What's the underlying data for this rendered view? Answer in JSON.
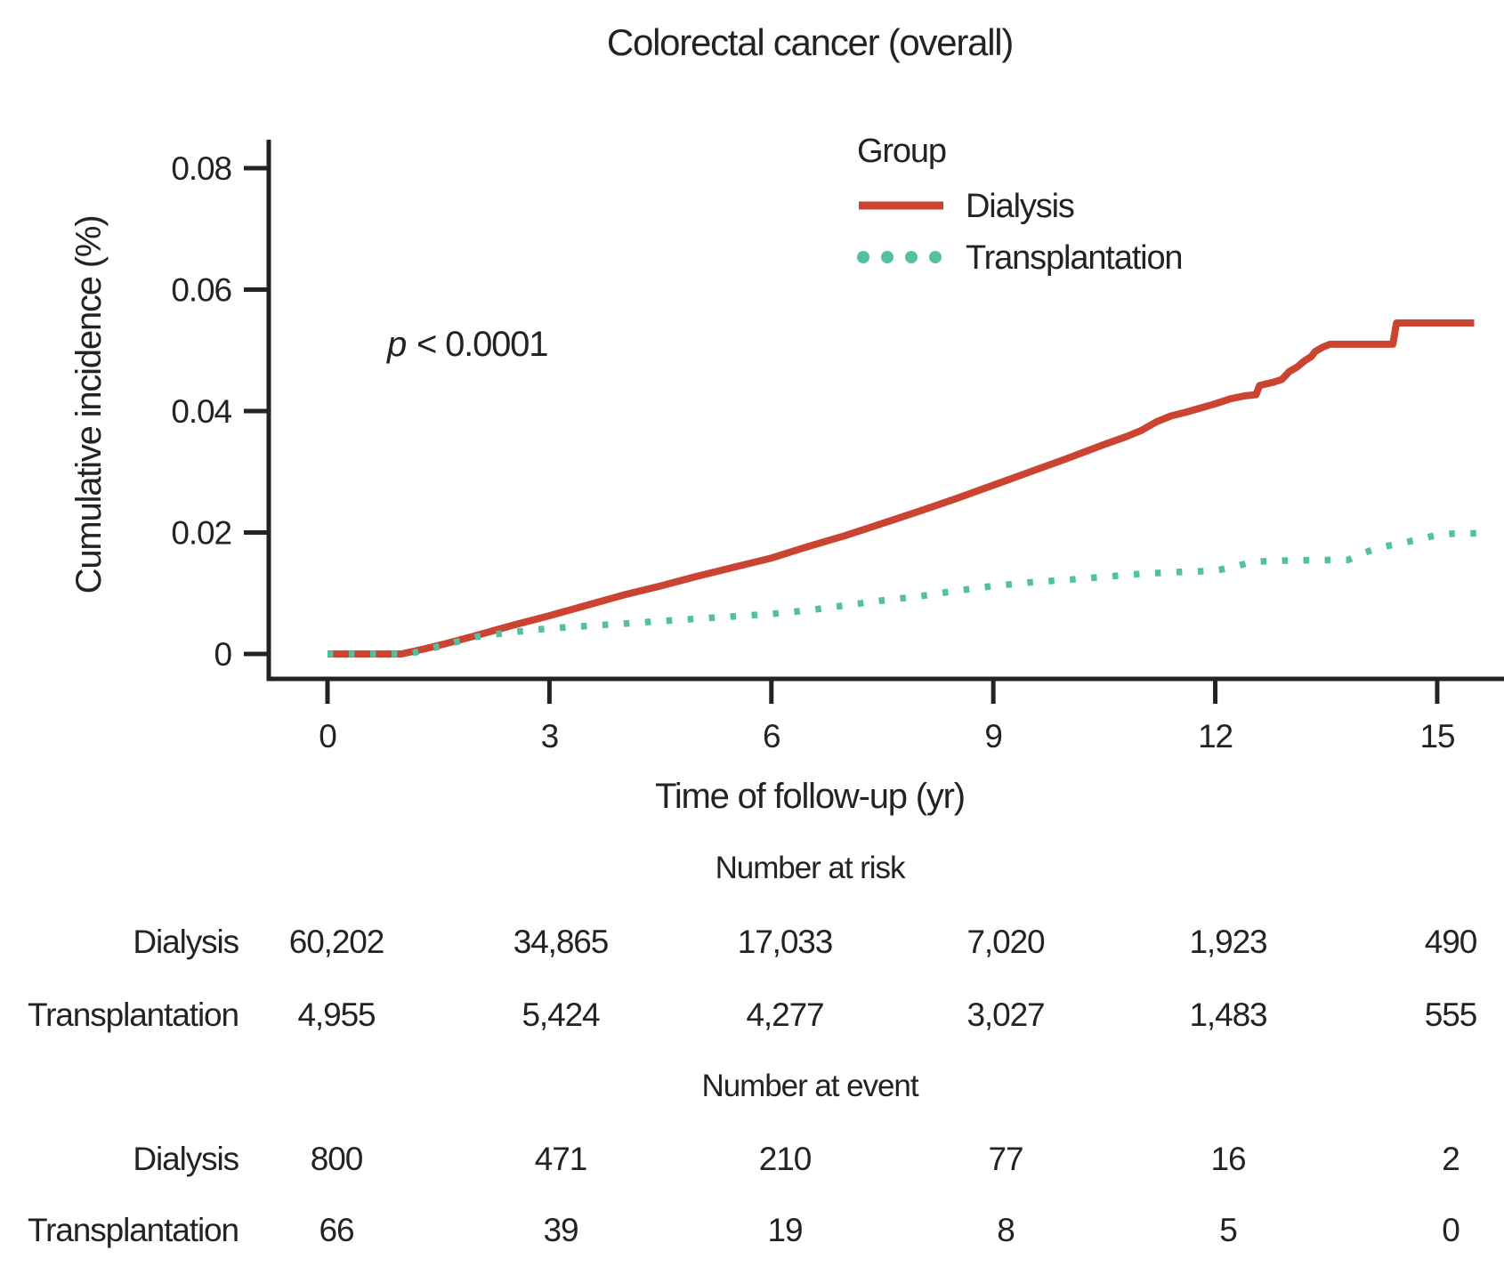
{
  "title": "Colorectal cancer (overall)",
  "annotation": {
    "p_italic": "p",
    "p_rest": "< 0.0001"
  },
  "legend": {
    "title": "Group",
    "items": [
      {
        "label": "Dialysis",
        "color": "#cb4431",
        "style": "solid"
      },
      {
        "label": "Transplantation",
        "color": "#54bfa2",
        "style": "dotted"
      }
    ]
  },
  "x_axis": {
    "label": "Time of follow-up (yr)",
    "ticks": [
      "0",
      "3",
      "6",
      "9",
      "12",
      "15"
    ]
  },
  "y_axis": {
    "label": "Cumulative incidence (%)",
    "ticks": [
      "0",
      "0.02",
      "0.04",
      "0.06",
      "0.08"
    ]
  },
  "chart_data": {
    "type": "line",
    "title": "Colorectal cancer (overall)",
    "xlabel": "Time of follow-up (yr)",
    "ylabel": "Cumulative incidence (%)",
    "xlim": [
      0,
      15.9
    ],
    "ylim": [
      0,
      0.0845
    ],
    "x_ticks": [
      0,
      3,
      6,
      9,
      12,
      15
    ],
    "y_ticks": [
      0,
      0.02,
      0.04,
      0.06,
      0.08
    ],
    "grid": false,
    "legend_position": "top-right-inside",
    "p_value_text": "p < 0.0001",
    "series": [
      {
        "name": "Dialysis",
        "color": "#cb4431",
        "line_style": "solid",
        "points": [
          [
            0,
            0
          ],
          [
            1,
            0
          ],
          [
            1.3,
            0.0008
          ],
          [
            1.6,
            0.0017
          ],
          [
            2,
            0.003
          ],
          [
            2.5,
            0.0047
          ],
          [
            3,
            0.0063
          ],
          [
            3.5,
            0.008
          ],
          [
            4,
            0.0097
          ],
          [
            4.5,
            0.0112
          ],
          [
            5,
            0.0128
          ],
          [
            5.5,
            0.0143
          ],
          [
            6,
            0.0158
          ],
          [
            6.5,
            0.0177
          ],
          [
            7,
            0.0195
          ],
          [
            7.5,
            0.0215
          ],
          [
            8,
            0.0235
          ],
          [
            8.5,
            0.0256
          ],
          [
            9,
            0.0278
          ],
          [
            9.5,
            0.03
          ],
          [
            10,
            0.0322
          ],
          [
            10.5,
            0.0345
          ],
          [
            10.8,
            0.0358
          ],
          [
            11,
            0.0368
          ],
          [
            11.2,
            0.0382
          ],
          [
            11.4,
            0.0392
          ],
          [
            11.6,
            0.0398
          ],
          [
            11.8,
            0.0405
          ],
          [
            12,
            0.0412
          ],
          [
            12.2,
            0.042
          ],
          [
            12.4,
            0.0425
          ],
          [
            12.55,
            0.0427
          ],
          [
            12.6,
            0.0442
          ],
          [
            12.8,
            0.0448
          ],
          [
            12.9,
            0.0452
          ],
          [
            13,
            0.0465
          ],
          [
            13.1,
            0.0472
          ],
          [
            13.2,
            0.0482
          ],
          [
            13.3,
            0.049
          ],
          [
            13.35,
            0.0498
          ],
          [
            13.45,
            0.0505
          ],
          [
            13.55,
            0.051
          ],
          [
            14.4,
            0.051
          ],
          [
            14.45,
            0.0545
          ],
          [
            15.5,
            0.0545
          ]
        ]
      },
      {
        "name": "Transplantation",
        "color": "#54bfa2",
        "line_style": "dotted",
        "points": [
          [
            0,
            0
          ],
          [
            1.1,
            0
          ],
          [
            1.5,
            0.0012
          ],
          [
            2,
            0.0028
          ],
          [
            2.5,
            0.0036
          ],
          [
            3,
            0.0042
          ],
          [
            4,
            0.005
          ],
          [
            5,
            0.0058
          ],
          [
            6,
            0.0066
          ],
          [
            6.5,
            0.0072
          ],
          [
            7,
            0.008
          ],
          [
            7.5,
            0.0088
          ],
          [
            8,
            0.0095
          ],
          [
            8.5,
            0.0104
          ],
          [
            9,
            0.0112
          ],
          [
            9.5,
            0.0118
          ],
          [
            10,
            0.0122
          ],
          [
            10.5,
            0.0127
          ],
          [
            11,
            0.0132
          ],
          [
            11.5,
            0.0135
          ],
          [
            12,
            0.0137
          ],
          [
            12.3,
            0.0145
          ],
          [
            12.5,
            0.0152
          ],
          [
            13,
            0.0154
          ],
          [
            13.8,
            0.0155
          ],
          [
            14,
            0.0166
          ],
          [
            14.2,
            0.0175
          ],
          [
            14.5,
            0.0182
          ],
          [
            14.8,
            0.019
          ],
          [
            15,
            0.0196
          ],
          [
            15.2,
            0.0198
          ],
          [
            15.6,
            0.0199
          ]
        ]
      }
    ]
  },
  "risk_table": {
    "title": "Number at risk",
    "rows": [
      {
        "label": "Dialysis",
        "values": [
          "60,202",
          "34,865",
          "17,033",
          "7,020",
          "1,923",
          "490"
        ]
      },
      {
        "label": "Transplantation",
        "values": [
          "4,955",
          "5,424",
          "4,277",
          "3,027",
          "1,483",
          "555"
        ]
      }
    ]
  },
  "event_table": {
    "title": "Number at event",
    "rows": [
      {
        "label": "Dialysis",
        "values": [
          "800",
          "471",
          "210",
          "77",
          "16",
          "2"
        ]
      },
      {
        "label": "Transplantation",
        "values": [
          "66",
          "39",
          "19",
          "8",
          "5",
          "0"
        ]
      }
    ]
  }
}
